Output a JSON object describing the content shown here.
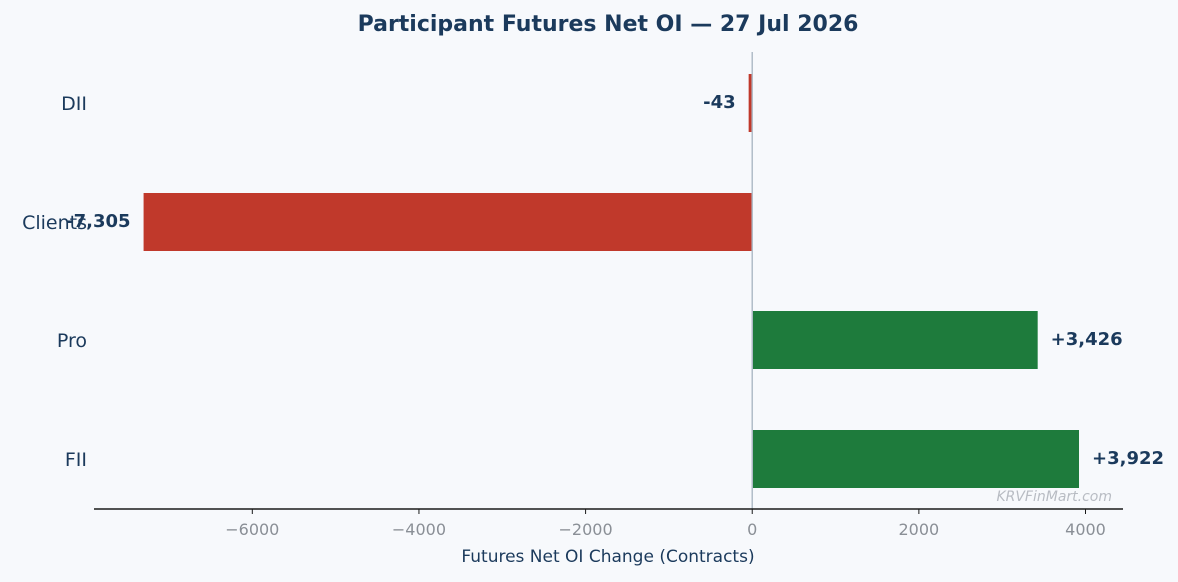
{
  "chart_data": {
    "type": "bar",
    "orientation": "horizontal",
    "title": "Participant Futures Net OI — 27 Jul 2026",
    "xlabel": "Futures Net OI Change (Contracts)",
    "ylabel": "",
    "categories": [
      "FII",
      "Pro",
      "Clients",
      "DII"
    ],
    "values": [
      3922,
      3426,
      -7305,
      -43
    ],
    "value_labels": [
      "+3,922",
      "+3,426",
      "-7,305",
      "-43"
    ],
    "xlim": [
      -7900,
      4450
    ],
    "xticks": [
      -6000,
      -4000,
      -2000,
      0,
      2000,
      4000
    ],
    "xtick_labels": [
      "−6000",
      "−4000",
      "−2000",
      "0",
      "2000",
      "4000"
    ],
    "grid": false,
    "colors": {
      "positive": "#1e7b3c",
      "negative": "#c0392b",
      "zero_line": "#b0bcc8"
    },
    "watermark": "KRVFinMart.com"
  }
}
